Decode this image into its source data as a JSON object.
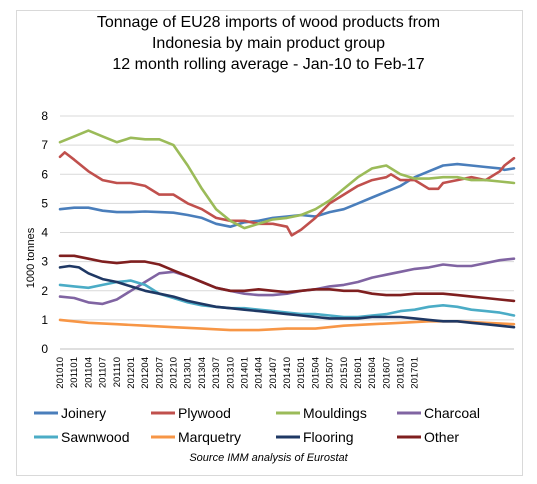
{
  "chart_data": {
    "type": "line",
    "title_lines": [
      "Tonnage of EU28 imports of wood products from",
      "Indonesia by main product group",
      "12 month rolling average - Jan-10 to Feb-17"
    ],
    "ylabel": "1000 tonnes",
    "ylim": [
      0,
      8
    ],
    "yticks": [
      0,
      1,
      2,
      3,
      4,
      5,
      6,
      7,
      8
    ],
    "xtick_labels": [
      "201010",
      "201101",
      "201104",
      "201107",
      "201110",
      "201201",
      "201204",
      "201207",
      "201210",
      "201301",
      "201304",
      "201307",
      "201310",
      "201401",
      "201404",
      "201407",
      "201410",
      "201501",
      "201504",
      "201507",
      "201510",
      "201601",
      "201604",
      "201607",
      "201610",
      "201701"
    ],
    "x_start": "2010-10",
    "grid": true,
    "legend_position": "bottom",
    "source": "Source IMM analysis of Eurostat",
    "series": [
      {
        "name": "Joinery",
        "color": "#4a7ebb",
        "values": [
          [
            0,
            4.8
          ],
          [
            3,
            4.85
          ],
          [
            6,
            4.85
          ],
          [
            9,
            4.75
          ],
          [
            12,
            4.7
          ],
          [
            15,
            4.7
          ],
          [
            18,
            4.72
          ],
          [
            21,
            4.7
          ],
          [
            24,
            4.68
          ],
          [
            27,
            4.6
          ],
          [
            30,
            4.5
          ],
          [
            33,
            4.3
          ],
          [
            36,
            4.2
          ],
          [
            39,
            4.35
          ],
          [
            42,
            4.4
          ],
          [
            45,
            4.5
          ],
          [
            48,
            4.55
          ],
          [
            51,
            4.6
          ],
          [
            54,
            4.55
          ],
          [
            57,
            4.7
          ],
          [
            60,
            4.8
          ],
          [
            63,
            5.0
          ],
          [
            66,
            5.2
          ],
          [
            69,
            5.4
          ],
          [
            72,
            5.6
          ],
          [
            75,
            5.9
          ],
          [
            78,
            6.1
          ],
          [
            81,
            6.3
          ],
          [
            84,
            6.35
          ],
          [
            87,
            6.3
          ],
          [
            90,
            6.25
          ],
          [
            93,
            6.2
          ],
          [
            94,
            6.15
          ],
          [
            96,
            6.2
          ]
        ]
      },
      {
        "name": "Plywood",
        "color": "#c0504d",
        "values": [
          [
            0,
            6.6
          ],
          [
            1,
            6.75
          ],
          [
            3,
            6.5
          ],
          [
            6,
            6.1
          ],
          [
            9,
            5.8
          ],
          [
            12,
            5.7
          ],
          [
            15,
            5.7
          ],
          [
            18,
            5.6
          ],
          [
            21,
            5.3
          ],
          [
            24,
            5.3
          ],
          [
            27,
            5.0
          ],
          [
            30,
            4.8
          ],
          [
            33,
            4.5
          ],
          [
            36,
            4.4
          ],
          [
            39,
            4.4
          ],
          [
            42,
            4.3
          ],
          [
            45,
            4.3
          ],
          [
            48,
            4.2
          ],
          [
            49,
            3.9
          ],
          [
            51,
            4.1
          ],
          [
            54,
            4.5
          ],
          [
            57,
            5.0
          ],
          [
            60,
            5.3
          ],
          [
            63,
            5.6
          ],
          [
            66,
            5.8
          ],
          [
            69,
            5.9
          ],
          [
            70,
            6.0
          ],
          [
            72,
            5.8
          ],
          [
            75,
            5.8
          ],
          [
            78,
            5.5
          ],
          [
            80,
            5.5
          ],
          [
            81,
            5.7
          ],
          [
            84,
            5.8
          ],
          [
            87,
            5.9
          ],
          [
            90,
            5.8
          ],
          [
            93,
            6.1
          ],
          [
            94,
            6.3
          ],
          [
            96,
            6.55
          ]
        ]
      },
      {
        "name": "Mouldings",
        "color": "#9bbb59",
        "values": [
          [
            0,
            7.1
          ],
          [
            3,
            7.3
          ],
          [
            6,
            7.5
          ],
          [
            9,
            7.3
          ],
          [
            12,
            7.1
          ],
          [
            15,
            7.25
          ],
          [
            18,
            7.2
          ],
          [
            21,
            7.2
          ],
          [
            24,
            7.0
          ],
          [
            27,
            6.3
          ],
          [
            30,
            5.5
          ],
          [
            33,
            4.8
          ],
          [
            36,
            4.4
          ],
          [
            39,
            4.15
          ],
          [
            42,
            4.3
          ],
          [
            45,
            4.45
          ],
          [
            48,
            4.5
          ],
          [
            51,
            4.6
          ],
          [
            54,
            4.8
          ],
          [
            57,
            5.1
          ],
          [
            60,
            5.5
          ],
          [
            63,
            5.9
          ],
          [
            66,
            6.2
          ],
          [
            69,
            6.3
          ],
          [
            72,
            6.0
          ],
          [
            75,
            5.85
          ],
          [
            78,
            5.85
          ],
          [
            81,
            5.9
          ],
          [
            84,
            5.9
          ],
          [
            87,
            5.8
          ],
          [
            90,
            5.8
          ],
          [
            93,
            5.75
          ],
          [
            96,
            5.7
          ]
        ]
      },
      {
        "name": "Charcoal",
        "color": "#8064a2",
        "values": [
          [
            0,
            1.8
          ],
          [
            3,
            1.75
          ],
          [
            6,
            1.6
          ],
          [
            9,
            1.55
          ],
          [
            12,
            1.7
          ],
          [
            15,
            2.0
          ],
          [
            18,
            2.3
          ],
          [
            21,
            2.6
          ],
          [
            24,
            2.65
          ],
          [
            27,
            2.5
          ],
          [
            30,
            2.3
          ],
          [
            33,
            2.1
          ],
          [
            36,
            2.0
          ],
          [
            39,
            1.9
          ],
          [
            42,
            1.85
          ],
          [
            45,
            1.85
          ],
          [
            48,
            1.9
          ],
          [
            51,
            2.0
          ],
          [
            54,
            2.05
          ],
          [
            57,
            2.15
          ],
          [
            60,
            2.2
          ],
          [
            63,
            2.3
          ],
          [
            66,
            2.45
          ],
          [
            69,
            2.55
          ],
          [
            72,
            2.65
          ],
          [
            75,
            2.75
          ],
          [
            78,
            2.8
          ],
          [
            81,
            2.9
          ],
          [
            84,
            2.85
          ],
          [
            87,
            2.85
          ],
          [
            90,
            2.95
          ],
          [
            93,
            3.05
          ],
          [
            96,
            3.1
          ]
        ]
      },
      {
        "name": "Sawnwood",
        "color": "#4bacc6",
        "values": [
          [
            0,
            2.2
          ],
          [
            3,
            2.15
          ],
          [
            6,
            2.1
          ],
          [
            9,
            2.2
          ],
          [
            12,
            2.3
          ],
          [
            15,
            2.35
          ],
          [
            18,
            2.2
          ],
          [
            21,
            1.9
          ],
          [
            24,
            1.75
          ],
          [
            27,
            1.6
          ],
          [
            30,
            1.5
          ],
          [
            33,
            1.45
          ],
          [
            36,
            1.4
          ],
          [
            39,
            1.4
          ],
          [
            42,
            1.35
          ],
          [
            45,
            1.3
          ],
          [
            48,
            1.25
          ],
          [
            51,
            1.2
          ],
          [
            54,
            1.2
          ],
          [
            57,
            1.15
          ],
          [
            60,
            1.1
          ],
          [
            63,
            1.1
          ],
          [
            66,
            1.15
          ],
          [
            69,
            1.2
          ],
          [
            72,
            1.3
          ],
          [
            75,
            1.35
          ],
          [
            78,
            1.45
          ],
          [
            81,
            1.5
          ],
          [
            84,
            1.45
          ],
          [
            87,
            1.35
          ],
          [
            90,
            1.3
          ],
          [
            93,
            1.25
          ],
          [
            96,
            1.15
          ]
        ]
      },
      {
        "name": "Marquetry",
        "color": "#f79646",
        "values": [
          [
            0,
            1.0
          ],
          [
            6,
            0.9
          ],
          [
            12,
            0.85
          ],
          [
            18,
            0.8
          ],
          [
            24,
            0.75
          ],
          [
            30,
            0.7
          ],
          [
            36,
            0.65
          ],
          [
            42,
            0.65
          ],
          [
            48,
            0.7
          ],
          [
            54,
            0.7
          ],
          [
            60,
            0.8
          ],
          [
            66,
            0.85
          ],
          [
            72,
            0.9
          ],
          [
            78,
            0.95
          ],
          [
            84,
            0.95
          ],
          [
            90,
            0.9
          ],
          [
            96,
            0.85
          ]
        ]
      },
      {
        "name": "Flooring",
        "color": "#1f3864",
        "values": [
          [
            0,
            2.8
          ],
          [
            2,
            2.85
          ],
          [
            4,
            2.8
          ],
          [
            6,
            2.6
          ],
          [
            9,
            2.4
          ],
          [
            12,
            2.3
          ],
          [
            15,
            2.15
          ],
          [
            18,
            2.0
          ],
          [
            21,
            1.9
          ],
          [
            24,
            1.8
          ],
          [
            27,
            1.65
          ],
          [
            30,
            1.55
          ],
          [
            33,
            1.45
          ],
          [
            36,
            1.4
          ],
          [
            39,
            1.35
          ],
          [
            42,
            1.3
          ],
          [
            45,
            1.25
          ],
          [
            48,
            1.2
          ],
          [
            51,
            1.15
          ],
          [
            54,
            1.1
          ],
          [
            57,
            1.05
          ],
          [
            60,
            1.05
          ],
          [
            63,
            1.05
          ],
          [
            66,
            1.1
          ],
          [
            69,
            1.1
          ],
          [
            72,
            1.1
          ],
          [
            75,
            1.05
          ],
          [
            78,
            1.0
          ],
          [
            81,
            0.95
          ],
          [
            84,
            0.95
          ],
          [
            87,
            0.9
          ],
          [
            90,
            0.85
          ],
          [
            93,
            0.8
          ],
          [
            96,
            0.75
          ]
        ]
      },
      {
        "name": "Other",
        "color": "#7f1f1f",
        "values": [
          [
            0,
            3.2
          ],
          [
            3,
            3.2
          ],
          [
            6,
            3.1
          ],
          [
            9,
            3.0
          ],
          [
            12,
            2.95
          ],
          [
            15,
            3.0
          ],
          [
            18,
            3.0
          ],
          [
            21,
            2.9
          ],
          [
            24,
            2.7
          ],
          [
            27,
            2.5
          ],
          [
            30,
            2.3
          ],
          [
            33,
            2.1
          ],
          [
            36,
            2.0
          ],
          [
            39,
            2.0
          ],
          [
            42,
            2.05
          ],
          [
            45,
            2.0
          ],
          [
            48,
            1.95
          ],
          [
            51,
            2.0
          ],
          [
            54,
            2.05
          ],
          [
            57,
            2.05
          ],
          [
            60,
            2.0
          ],
          [
            63,
            2.0
          ],
          [
            66,
            1.9
          ],
          [
            69,
            1.85
          ],
          [
            72,
            1.85
          ],
          [
            75,
            1.9
          ],
          [
            78,
            1.9
          ],
          [
            81,
            1.9
          ],
          [
            84,
            1.85
          ],
          [
            87,
            1.8
          ],
          [
            90,
            1.75
          ],
          [
            93,
            1.7
          ],
          [
            96,
            1.65
          ]
        ]
      }
    ]
  }
}
